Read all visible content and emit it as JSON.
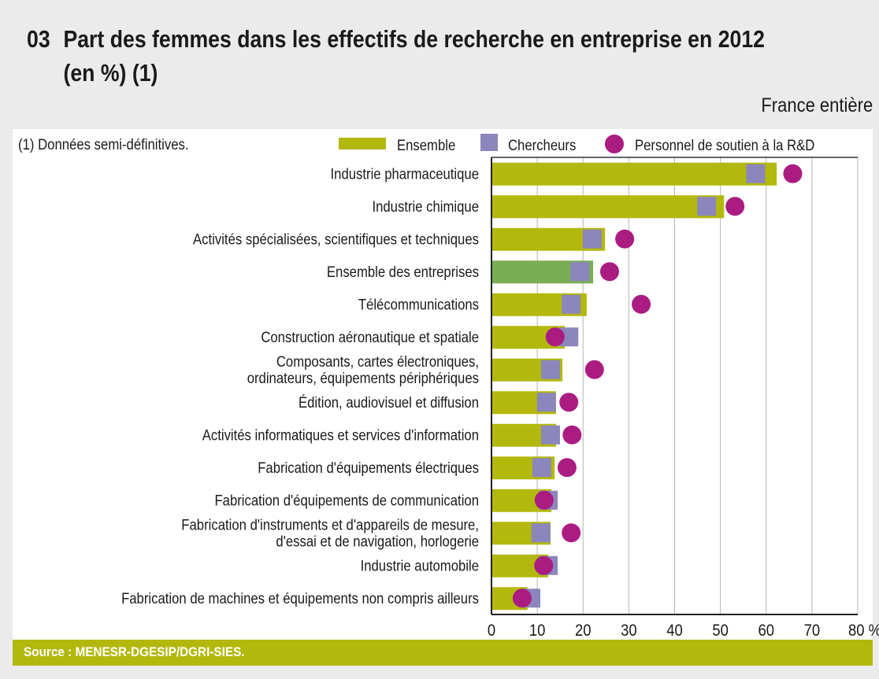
{
  "header": {
    "number": "03",
    "title_line1": "Part des femmes dans les effectifs de recherche en entreprise en 2012",
    "title_line2": "(en %) (1)",
    "region": "France entière"
  },
  "note": "(1) Données semi-définitives.",
  "source": "Source : MENESR-DGESIP/DGRI-SIES.",
  "colors": {
    "ensemble": "#b3b80d",
    "ensemble_highlight": "#7bae54",
    "chercheurs": "#8b86bb",
    "soutien": "#ab1c83"
  },
  "chart_data": {
    "type": "bar",
    "orientation": "horizontal",
    "title": "Part des femmes dans les effectifs de recherche en entreprise en 2012 (en %) (1)",
    "xlabel": "%",
    "ylabel": "",
    "xlim": [
      0,
      80
    ],
    "xticks": [
      "0",
      "10",
      "20",
      "30",
      "40",
      "50",
      "60",
      "70",
      "80 %"
    ],
    "grid": true,
    "legend_position": "top-right",
    "highlight_category": "Ensemble des entreprises",
    "categories": [
      [
        "Industrie pharmaceutique"
      ],
      [
        "Industrie chimique"
      ],
      [
        "Activités spécialisées, scientifiques et techniques"
      ],
      [
        "Ensemble des entreprises"
      ],
      [
        "Télécommunications"
      ],
      [
        "Construction aéronautique et spatiale"
      ],
      [
        "Composants, cartes électroniques,",
        "ordinateurs, équipements périphériques"
      ],
      [
        "Édition, audiovisuel et diffusion"
      ],
      [
        "Activités informatiques et services d'information"
      ],
      [
        "Fabrication d'équipements électriques"
      ],
      [
        "Fabrication d'équipements de communication"
      ],
      [
        "Fabrication d'instruments et d'appareils de mesure,",
        "d'essai et de navigation, horlogerie"
      ],
      [
        "Industrie automobile"
      ],
      [
        "Fabrication de machines et équipements non compris ailleurs"
      ]
    ],
    "series": [
      {
        "name": "Ensemble",
        "marker": "bar",
        "values": [
          62.3,
          50.8,
          24.8,
          22.2,
          20.8,
          16.0,
          15.5,
          14.1,
          14.1,
          13.8,
          13.1,
          12.9,
          12.4,
          7.9
        ]
      },
      {
        "name": "Chercheurs",
        "marker": "square",
        "values": [
          57.7,
          47.0,
          22.0,
          19.3,
          17.4,
          16.9,
          12.9,
          12.0,
          12.9,
          11.0,
          12.4,
          10.8,
          12.4,
          8.6
        ]
      },
      {
        "name": "Personnel de soutien à la R&D",
        "marker": "circle",
        "values": [
          65.8,
          53.2,
          29.1,
          25.8,
          32.7,
          13.9,
          22.5,
          16.9,
          17.6,
          16.5,
          11.5,
          17.4,
          11.4,
          6.7
        ]
      }
    ]
  }
}
